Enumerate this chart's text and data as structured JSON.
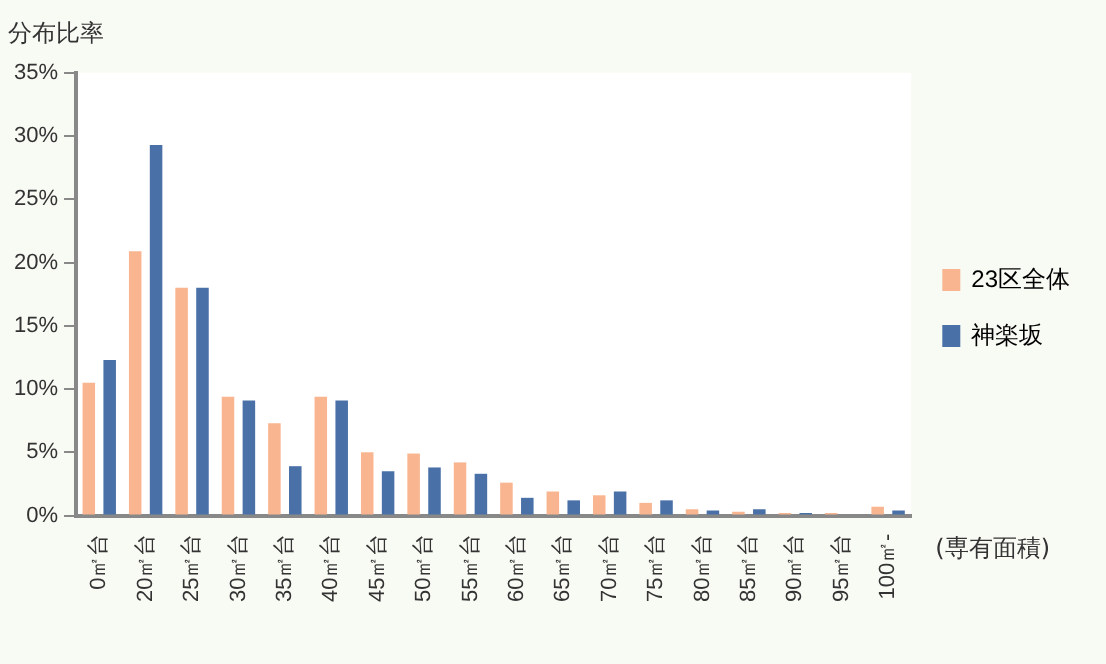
{
  "chart_data": {
    "type": "bar",
    "title": "分布比率",
    "xlabel": "(専有面積)",
    "categories": [
      "0㎡台",
      "20㎡台",
      "25㎡台",
      "30㎡台",
      "35㎡台",
      "40㎡台",
      "45㎡台",
      "50㎡台",
      "55㎡台",
      "60㎡台",
      "65㎡台",
      "70㎡台",
      "75㎡台",
      "80㎡台",
      "85㎡台",
      "90㎡台",
      "95㎡台",
      "100㎡-"
    ],
    "series": [
      {
        "name": "23区全体",
        "color": "#f9b58f",
        "values": [
          10.5,
          20.9,
          18.0,
          9.4,
          7.3,
          9.4,
          5.0,
          4.9,
          4.2,
          2.6,
          1.9,
          1.6,
          1.0,
          0.5,
          0.3,
          0.2,
          0.2,
          0.7
        ]
      },
      {
        "name": "神楽坂",
        "color": "#4a70a8",
        "values": [
          12.3,
          29.3,
          18.0,
          9.1,
          3.9,
          9.1,
          3.5,
          3.8,
          3.3,
          1.4,
          1.2,
          1.9,
          1.2,
          0.4,
          0.5,
          0.2,
          null,
          0.4
        ]
      }
    ],
    "ylim": [
      0,
      35
    ],
    "yticks": [
      {
        "value": 0,
        "label": "0%"
      },
      {
        "value": 5,
        "label": "5%"
      },
      {
        "value": 10,
        "label": "10%"
      },
      {
        "value": 15,
        "label": "15%"
      },
      {
        "value": 20,
        "label": "20%"
      },
      {
        "value": 25,
        "label": "25%"
      },
      {
        "value": 30,
        "label": "30%"
      },
      {
        "value": 35,
        "label": "35%"
      }
    ],
    "grid": false,
    "legend": "right"
  }
}
